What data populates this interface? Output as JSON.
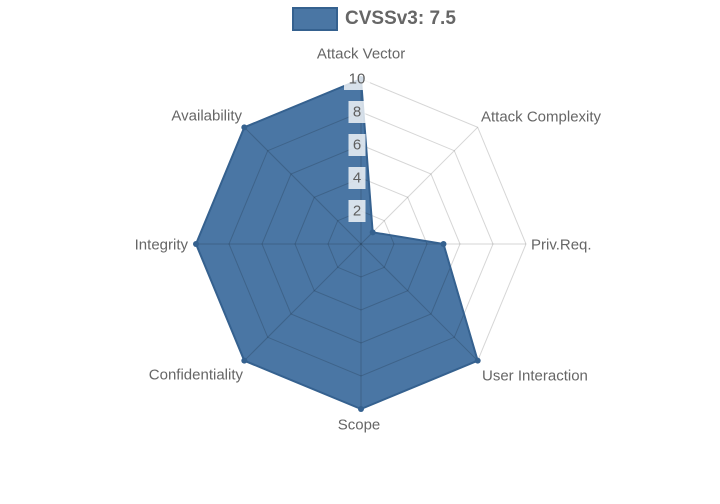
{
  "legend": {
    "label": "CVSSv3: 7.5"
  },
  "colors": {
    "series_fill": "#4A76A4",
    "series_line": "#35618F",
    "grid_line": "rgba(0,0,0,0.16)",
    "axis_label": "#666666",
    "tick_text": "#5e5e5e",
    "tick_backdrop": "rgba(255,255,255,0.78)",
    "legend_text": "#666666",
    "background": "#FFFFFF"
  },
  "chart_data": {
    "type": "radar",
    "title": "",
    "categories": [
      "Attack Vector",
      "Attack Complexity",
      "Priv.Req.",
      "User Interaction",
      "Scope",
      "Confidentiality",
      "Integrity",
      "Availability"
    ],
    "series": [
      {
        "name": "CVSSv3: 7.5",
        "values": [
          10,
          1,
          5,
          10,
          10,
          10,
          10,
          10
        ]
      }
    ],
    "scale": {
      "min": 0,
      "max": 10,
      "ticks": [
        2,
        4,
        6,
        8,
        10
      ]
    },
    "grid": true,
    "legend_position": "top"
  }
}
